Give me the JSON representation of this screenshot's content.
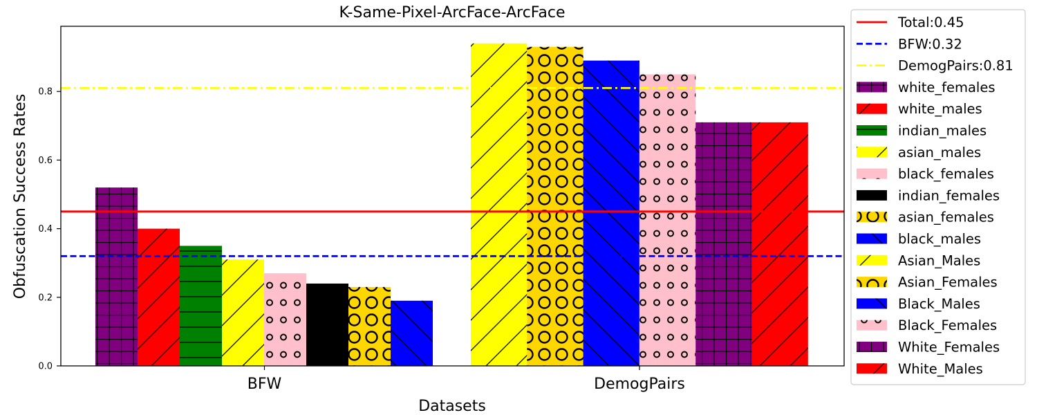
{
  "chart_data": {
    "type": "bar",
    "title": "K-Same-Pixel-ArcFace-ArcFace",
    "xlabel": "Datasets",
    "ylabel": "Obfuscation Success Rates",
    "categories": [
      "BFW",
      "DemogPairs"
    ],
    "ylim": [
      0,
      0.99
    ],
    "yticks": [
      "0.0",
      "0.2",
      "0.4",
      "0.6",
      "0.8"
    ],
    "grid": false,
    "legend_position": "outside-right",
    "groups": [
      {
        "category": "BFW",
        "bars": [
          {
            "label": "white_females",
            "value": 0.52,
            "color": "#800080",
            "hatch": "grid"
          },
          {
            "label": "white_males",
            "value": 0.4,
            "color": "#ff0000",
            "hatch": "diag"
          },
          {
            "label": "indian_males",
            "value": 0.35,
            "color": "#008000",
            "hatch": "horiz"
          },
          {
            "label": "asian_males",
            "value": 0.31,
            "color": "#ffff00",
            "hatch": "diag"
          },
          {
            "label": "black_females",
            "value": 0.27,
            "color": "#ffc0cb",
            "hatch": "smallcircles"
          },
          {
            "label": "indian_females",
            "value": 0.24,
            "color": "#000000",
            "hatch": "none"
          },
          {
            "label": "asian_females",
            "value": 0.23,
            "color": "#ffd700",
            "hatch": "circles"
          },
          {
            "label": "black_males",
            "value": 0.19,
            "color": "#0000ff",
            "hatch": "backdiag"
          }
        ]
      },
      {
        "category": "DemogPairs",
        "bars": [
          {
            "label": "Asian_Males",
            "value": 0.94,
            "color": "#ffff00",
            "hatch": "diag"
          },
          {
            "label": "Asian_Females",
            "value": 0.93,
            "color": "#ffd700",
            "hatch": "circles"
          },
          {
            "label": "Black_Males",
            "value": 0.89,
            "color": "#0000ff",
            "hatch": "backdiag"
          },
          {
            "label": "Black_Females",
            "value": 0.85,
            "color": "#ffc0cb",
            "hatch": "smallcircles"
          },
          {
            "label": "White_Females",
            "value": 0.71,
            "color": "#800080",
            "hatch": "grid"
          },
          {
            "label": "White_Males",
            "value": 0.71,
            "color": "#ff0000",
            "hatch": "diag"
          }
        ]
      }
    ],
    "reference_lines": [
      {
        "label": "Total:0.45",
        "value": 0.45,
        "color": "#ff0000",
        "style": "solid"
      },
      {
        "label": "BFW:0.32",
        "value": 0.32,
        "color": "#0000ff",
        "style": "dashed"
      },
      {
        "label": "DemogPairs:0.81",
        "value": 0.81,
        "color": "#ffff00",
        "style": "dashdot"
      }
    ],
    "legend": [
      {
        "label": "Total:0.45",
        "kind": "line",
        "color": "#ff0000",
        "style": "solid"
      },
      {
        "label": "BFW:0.32",
        "kind": "line",
        "color": "#0000ff",
        "style": "dashed"
      },
      {
        "label": "DemogPairs:0.81",
        "kind": "line",
        "color": "#ffff00",
        "style": "dashdot"
      },
      {
        "label": "white_females",
        "kind": "patch",
        "color": "#800080",
        "hatch": "grid"
      },
      {
        "label": "white_males",
        "kind": "patch",
        "color": "#ff0000",
        "hatch": "diag"
      },
      {
        "label": "indian_males",
        "kind": "patch",
        "color": "#008000",
        "hatch": "horiz"
      },
      {
        "label": "asian_males",
        "kind": "patch",
        "color": "#ffff00",
        "hatch": "diag"
      },
      {
        "label": "black_females",
        "kind": "patch",
        "color": "#ffc0cb",
        "hatch": "smallcircles"
      },
      {
        "label": "indian_females",
        "kind": "patch",
        "color": "#000000",
        "hatch": "none"
      },
      {
        "label": "asian_females",
        "kind": "patch",
        "color": "#ffd700",
        "hatch": "circles"
      },
      {
        "label": "black_males",
        "kind": "patch",
        "color": "#0000ff",
        "hatch": "backdiag"
      },
      {
        "label": "Asian_Males",
        "kind": "patch",
        "color": "#ffff00",
        "hatch": "diag"
      },
      {
        "label": "Asian_Females",
        "kind": "patch",
        "color": "#ffd700",
        "hatch": "circles"
      },
      {
        "label": "Black_Males",
        "kind": "patch",
        "color": "#0000ff",
        "hatch": "backdiag"
      },
      {
        "label": "Black_Females",
        "kind": "patch",
        "color": "#ffc0cb",
        "hatch": "smallcircles"
      },
      {
        "label": "White_Females",
        "kind": "patch",
        "color": "#800080",
        "hatch": "grid"
      },
      {
        "label": "White_Males",
        "kind": "patch",
        "color": "#ff0000",
        "hatch": "diag"
      }
    ]
  }
}
